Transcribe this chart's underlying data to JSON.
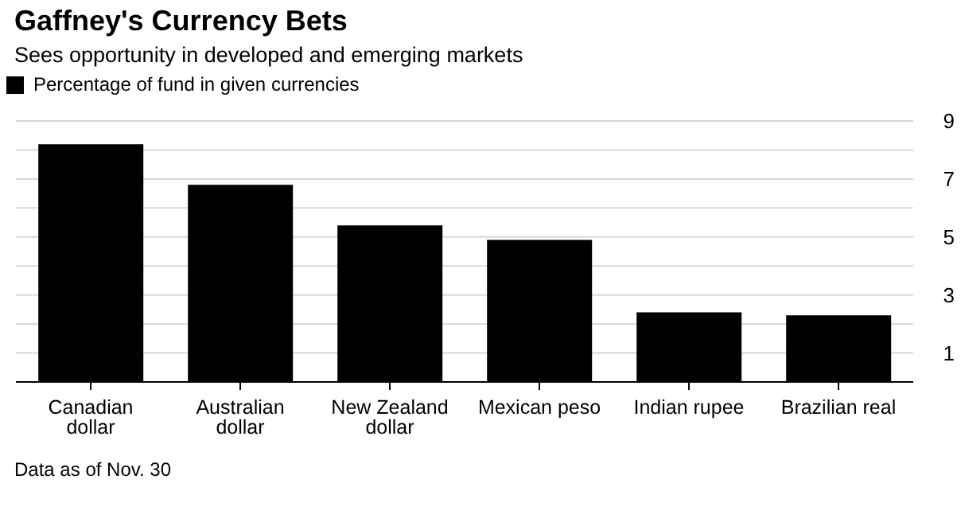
{
  "chart_data": {
    "type": "bar",
    "title": "Gaffney's Currency Bets",
    "subtitle": "Sees opportunity in developed and emerging markets",
    "categories": [
      "Canadian dollar",
      "Australian dollar",
      "New Zealand dollar",
      "Mexican peso",
      "Indian rupee",
      "Brazilian real"
    ],
    "series": [
      {
        "name": "Percentage of fund in given currencies",
        "color": "#000000",
        "values": [
          8.2,
          6.8,
          5.4,
          4.9,
          2.4,
          2.3
        ]
      }
    ],
    "ylim": [
      0,
      9
    ],
    "yticks": [
      {
        "value": 0,
        "label": null
      },
      1,
      {
        "value": 2,
        "label": null
      },
      3,
      {
        "value": 4,
        "label": null
      },
      5,
      {
        "value": 6,
        "label": null
      },
      7,
      {
        "value": 8,
        "label": null
      },
      9
    ],
    "grid": "y",
    "legend": "top left",
    "annotations": [
      "Data as of Nov. 30"
    ]
  }
}
